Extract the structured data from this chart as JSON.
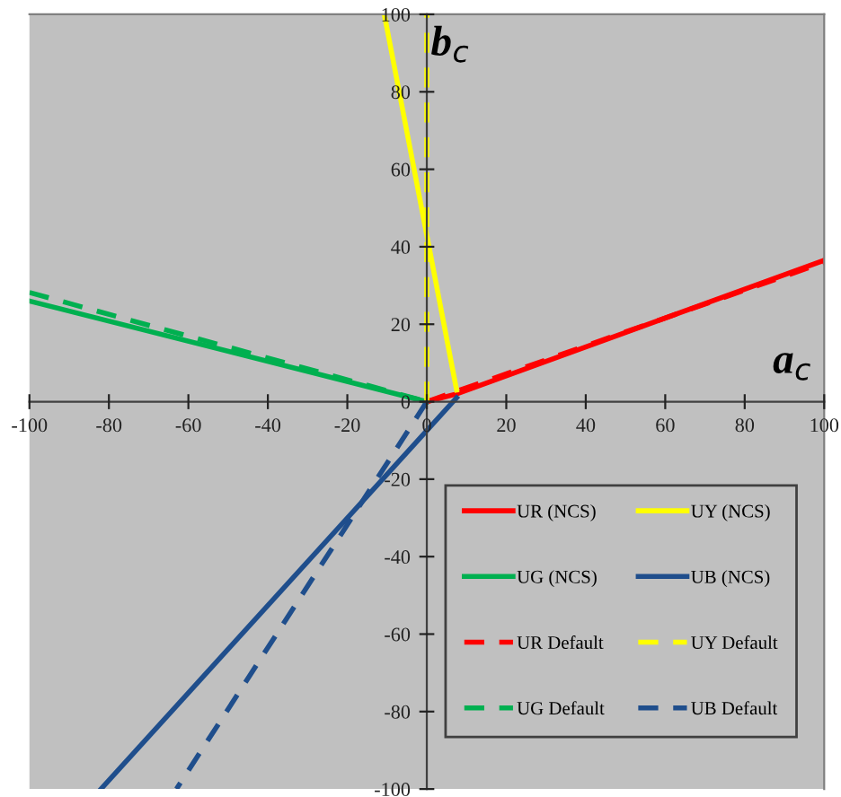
{
  "chart_data": {
    "type": "line",
    "xlabel": "a$_{c}$",
    "ylabel": "b$_{c}$",
    "xlim": [
      -100,
      100
    ],
    "ylim": [
      -100,
      100
    ],
    "xticks": [
      -100,
      -80,
      -60,
      -40,
      -20,
      0,
      20,
      40,
      60,
      80,
      100
    ],
    "yticks": [
      -100,
      -80,
      -60,
      -40,
      -20,
      0,
      20,
      40,
      60,
      80,
      100
    ],
    "grid": false,
    "legend": "bottom right",
    "marker": "none",
    "series": [
      {
        "name": "UR (NCS)",
        "color": "#ff0000",
        "line_style": "solid",
        "x": [
          0,
          7.5,
          100
        ],
        "values": [
          0,
          2,
          36.5
        ]
      },
      {
        "name": "UY (NCS)",
        "color": "#ffff00",
        "line_style": "solid",
        "x": [
          7.5,
          -10.7
        ],
        "values": [
          3,
          100
        ]
      },
      {
        "name": "UG (NCS)",
        "color": "#00b050",
        "line_style": "solid",
        "x": [
          -100,
          0
        ],
        "values": [
          26,
          0
        ]
      },
      {
        "name": "UB (NCS)",
        "color": "#1f4e8c",
        "line_style": "solid",
        "x": [
          7.5,
          -82
        ],
        "values": [
          1,
          -100
        ]
      },
      {
        "name": "UR Default",
        "color": "#ff0000",
        "line_style": "dashed",
        "x": [
          0,
          100
        ],
        "values": [
          0,
          36
        ]
      },
      {
        "name": "UY Default",
        "color": "#ffff00",
        "line_style": "dashed",
        "x": [
          0,
          0
        ],
        "values": [
          0,
          100
        ]
      },
      {
        "name": "UG Default",
        "color": "#00b050",
        "line_style": "dashed",
        "x": [
          -100,
          0
        ],
        "values": [
          28.2,
          0
        ]
      },
      {
        "name": "UB Default",
        "color": "#1f4e8c",
        "line_style": "dashed",
        "x": [
          0,
          -63
        ],
        "values": [
          0,
          -100
        ]
      }
    ]
  }
}
